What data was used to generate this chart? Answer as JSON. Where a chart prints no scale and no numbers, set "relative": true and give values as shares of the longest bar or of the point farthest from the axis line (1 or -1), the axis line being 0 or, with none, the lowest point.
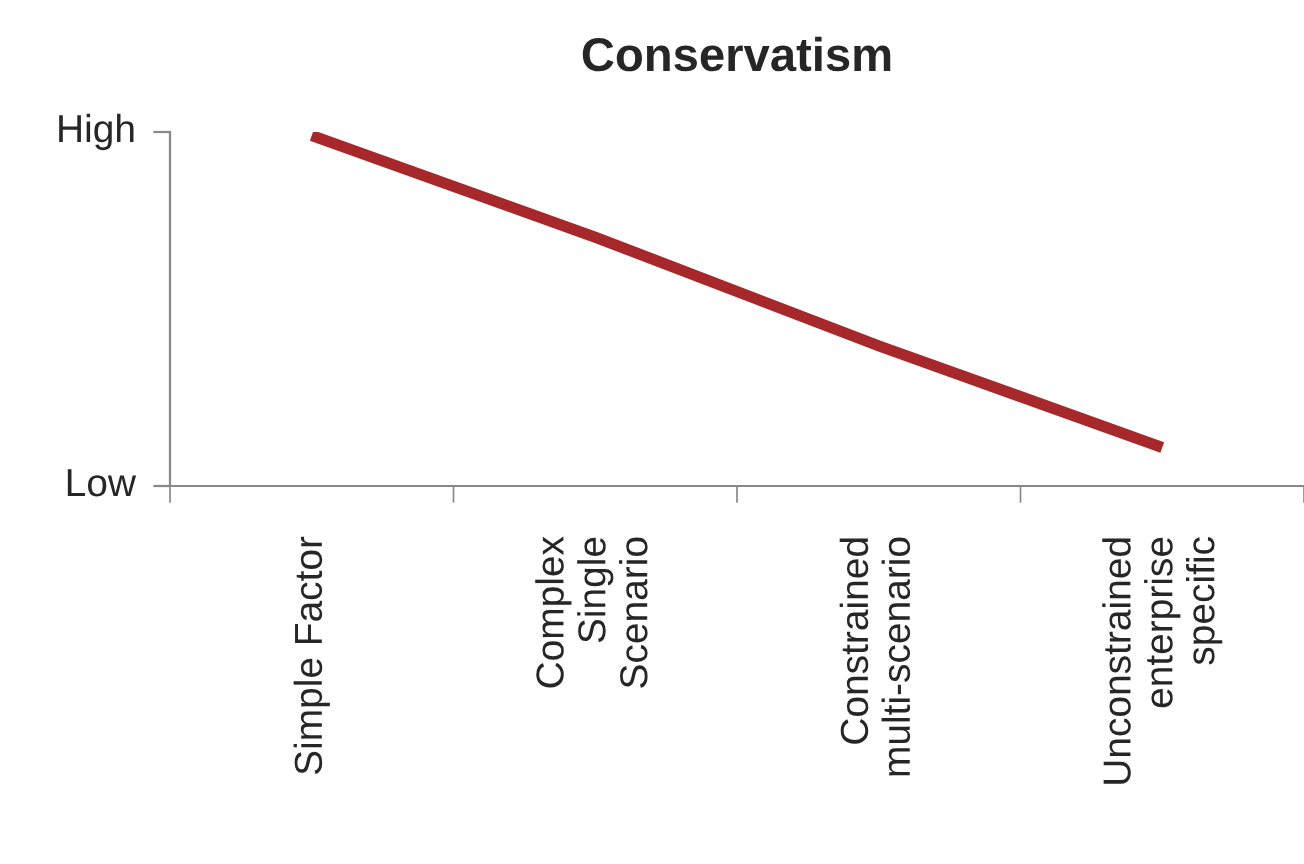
{
  "chart_data": {
    "type": "line",
    "title": "Conservatism",
    "categories": [
      "Simple Factor",
      "Complex\nSingle\nScenario",
      "Constrained\nmulti-scenario",
      "Unconstrained\nenterprise\nspecific"
    ],
    "series": [
      {
        "color": "#a6282a",
        "values": [
          1,
          0.71,
          0.4,
          0.11
        ]
      }
    ],
    "relative": true,
    "annotations": [
      "High",
      "Low"
    ],
    "grid": false,
    "legend": false,
    "marker": "none",
    "line_style": "solid"
  }
}
